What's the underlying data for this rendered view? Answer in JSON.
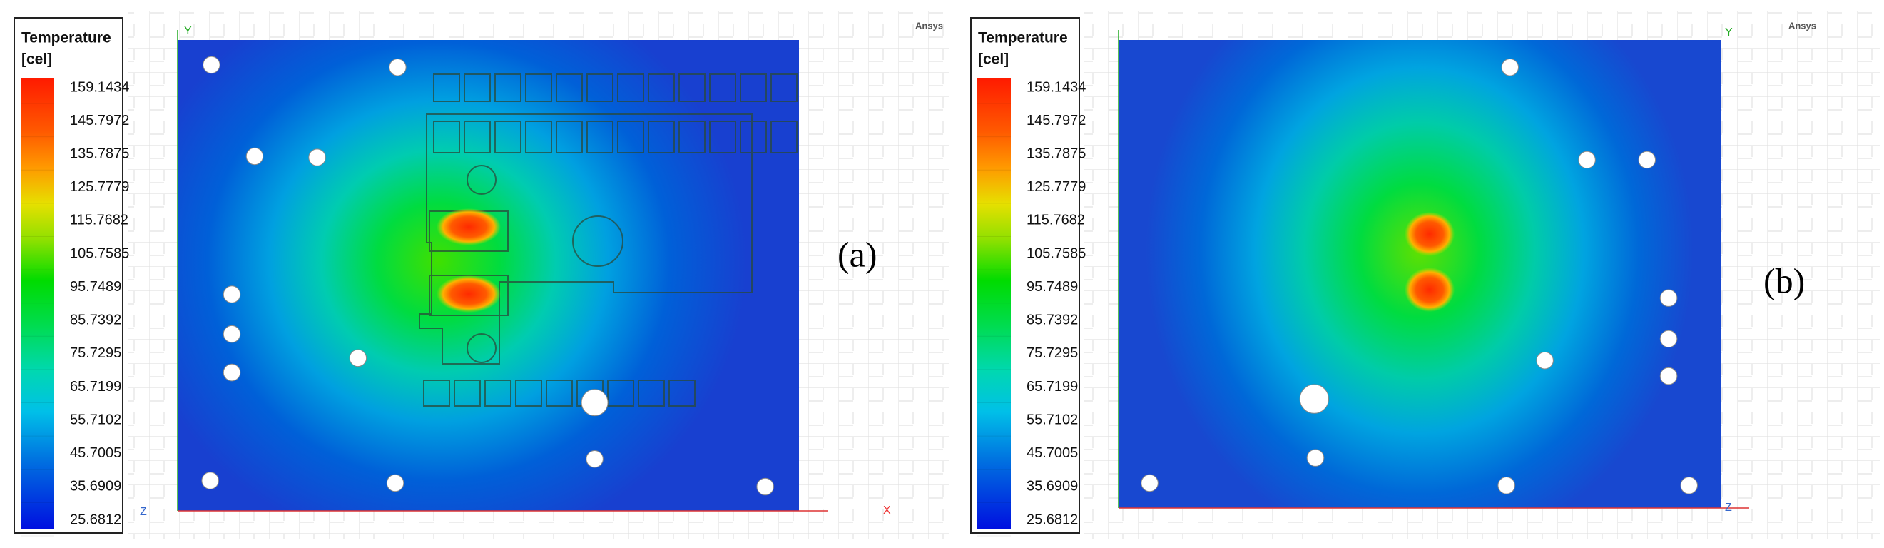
{
  "panels": [
    {
      "legend": {
        "title": "Temperature",
        "unit": "[cel]",
        "values": [
          159.1434,
          145.7972,
          135.7875,
          125.7779,
          115.7682,
          105.7585,
          95.7489,
          85.7392,
          75.7295,
          65.7199,
          55.7102,
          45.7005,
          35.6909,
          25.6812
        ]
      },
      "watermark": "Ansys",
      "axis_labels": [
        "Y",
        "X",
        "Z"
      ],
      "label": "(a)"
    },
    {
      "legend": {
        "title": "Temperature",
        "unit": "[cel]",
        "values": [
          159.1434,
          145.7972,
          135.7875,
          125.7779,
          115.7682,
          105.7585,
          95.7489,
          85.7392,
          75.7295,
          65.7199,
          55.7102,
          45.7005,
          35.6909,
          25.6812
        ]
      },
      "watermark": "Ansys",
      "axis_labels": [
        "Y",
        "Z"
      ],
      "label": "(b)"
    }
  ]
}
